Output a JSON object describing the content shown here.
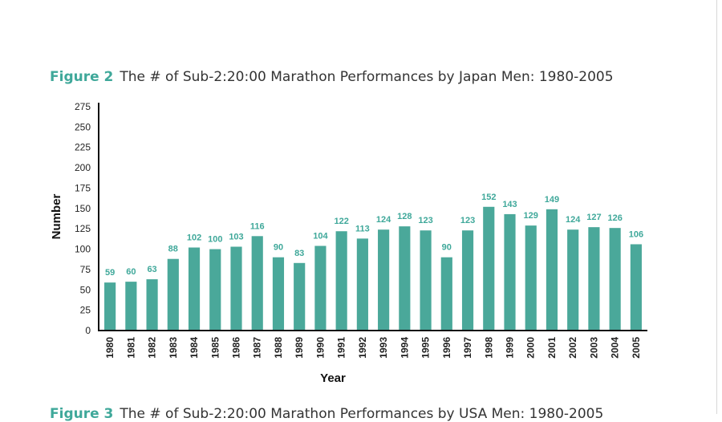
{
  "figure": {
    "label": "Figure 2",
    "title": "The # of Sub-2:20:00 Marathon Performances by Japan Men: 1980-2005"
  },
  "next_figure": {
    "label": "Figure 3",
    "title": "The # of Sub-2:20:00 Marathon Performances by USA Men: 1980-2005"
  },
  "chart_data": {
    "type": "bar",
    "title": "The # of Sub-2:20:00 Marathon Performances by Japan Men: 1980-2005",
    "xlabel": "Year",
    "ylabel": "Number",
    "ylim": [
      0,
      275
    ],
    "yticks": [
      0,
      25,
      50,
      75,
      100,
      125,
      150,
      175,
      200,
      225,
      250,
      275
    ],
    "grid": false,
    "bar_color": "#4aa89a",
    "label_color": "#3fa89a",
    "categories": [
      "1980",
      "1981",
      "1982",
      "1983",
      "1984",
      "1985",
      "1986",
      "1987",
      "1988",
      "1989",
      "1990",
      "1991",
      "1992",
      "1993",
      "1994",
      "1995",
      "1996",
      "1997",
      "1998",
      "1999",
      "2000",
      "2001",
      "2002",
      "2003",
      "2004",
      "2005"
    ],
    "values": [
      59,
      60,
      63,
      88,
      102,
      100,
      103,
      116,
      90,
      83,
      104,
      122,
      113,
      124,
      128,
      123,
      90,
      123,
      152,
      143,
      129,
      149,
      124,
      127,
      126,
      106
    ]
  }
}
